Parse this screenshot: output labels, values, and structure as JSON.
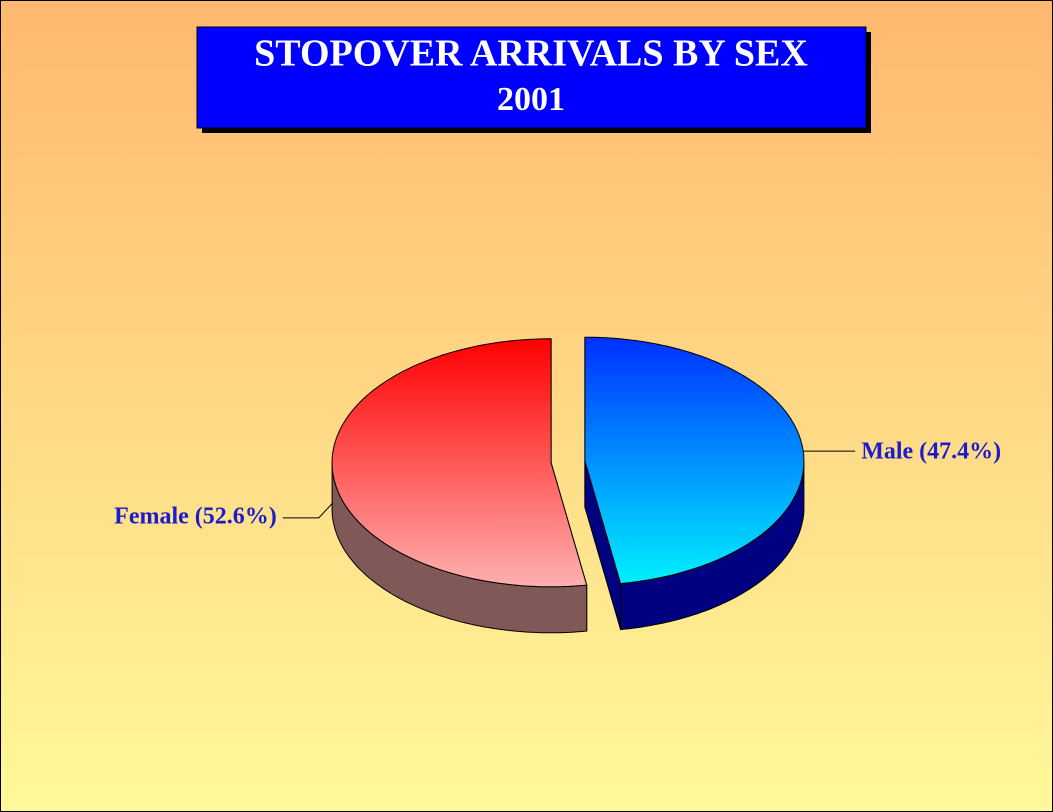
{
  "chart_data": {
    "type": "pie",
    "title": "STOPOVER ARRIVALS BY SEX",
    "subtitle": "2001",
    "values": [
      47.4,
      52.6
    ],
    "value_labels": [
      "Male (47.4%)",
      "Female (52.6%)"
    ],
    "colors": [
      "#0030ff",
      "#ff0000"
    ],
    "colors_light": [
      "#00f0ff",
      "#ffb0b0"
    ],
    "side_colors": [
      "#000080",
      "#805858"
    ],
    "explode": true,
    "start_angle": 0,
    "direction": "clockwise"
  }
}
